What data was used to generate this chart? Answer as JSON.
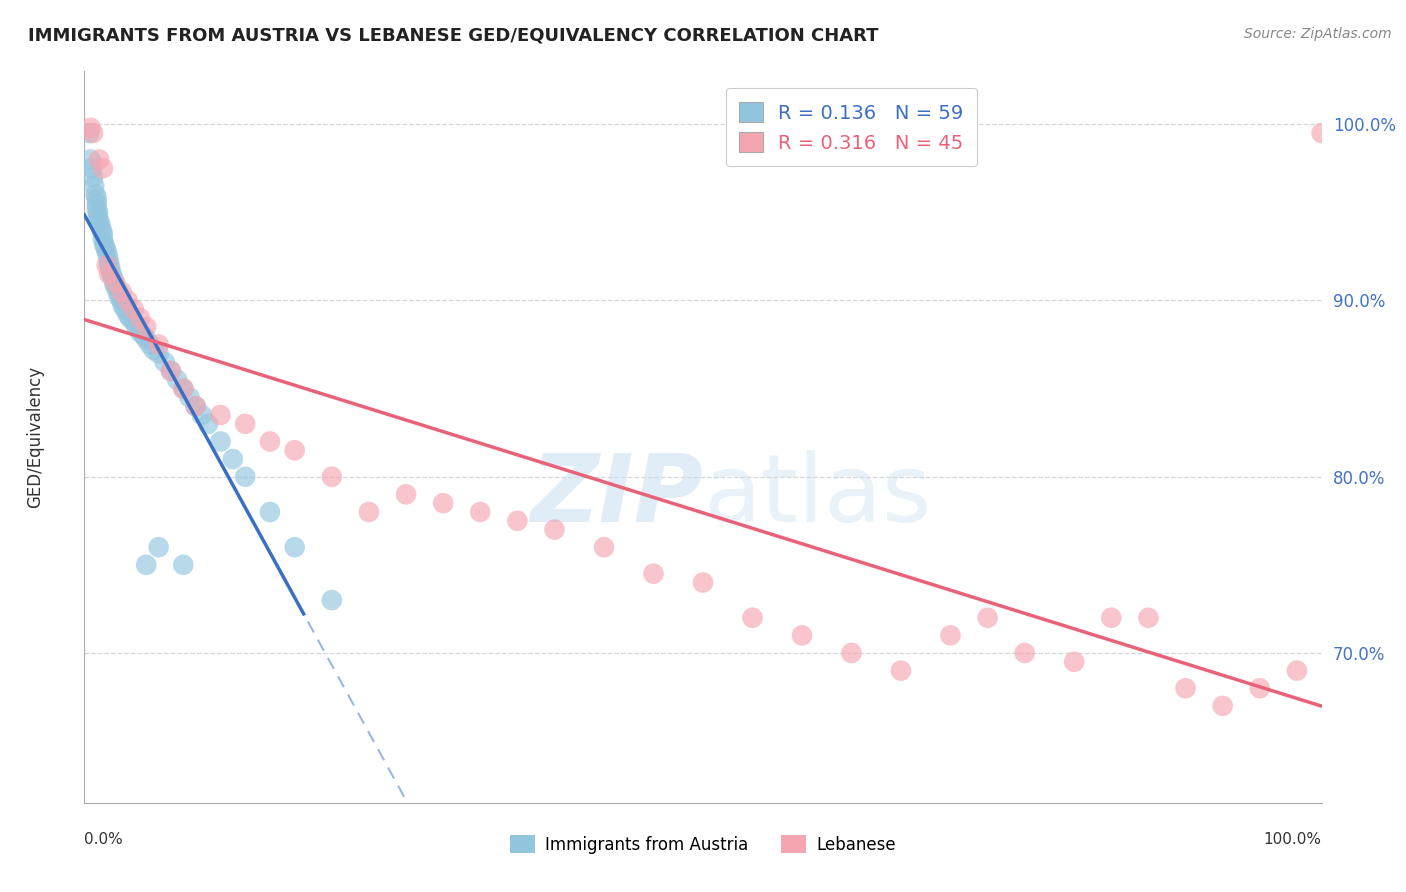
{
  "title": "IMMIGRANTS FROM AUSTRIA VS LEBANESE GED/EQUIVALENCY CORRELATION CHART",
  "source": "Source: ZipAtlas.com",
  "ylabel": "GED/Equivalency",
  "yticks": [
    0.7,
    0.8,
    0.9,
    1.0
  ],
  "ytick_labels": [
    "70.0%",
    "80.0%",
    "90.0%",
    "100.0%"
  ],
  "xlim": [
    0.0,
    1.0
  ],
  "ylim": [
    0.615,
    1.03
  ],
  "austria_R": 0.136,
  "austria_N": 59,
  "lebanese_R": 0.316,
  "lebanese_N": 45,
  "austria_color": "#92c5de",
  "lebanese_color": "#f4a6b0",
  "austria_trend_color": "#3a6fc4",
  "lebanese_trend_color": "#e8637a",
  "watermark_text": "ZIPatlas",
  "background_color": "#ffffff",
  "austria_x": [
    0.004,
    0.005,
    0.006,
    0.007,
    0.008,
    0.009,
    0.01,
    0.01,
    0.01,
    0.011,
    0.011,
    0.012,
    0.013,
    0.014,
    0.015,
    0.015,
    0.016,
    0.017,
    0.018,
    0.019,
    0.02,
    0.02,
    0.021,
    0.022,
    0.023,
    0.024,
    0.025,
    0.027,
    0.028,
    0.03,
    0.031,
    0.033,
    0.035,
    0.037,
    0.04,
    0.042,
    0.045,
    0.048,
    0.05,
    0.053,
    0.056,
    0.06,
    0.065,
    0.07,
    0.075,
    0.08,
    0.085,
    0.09,
    0.095,
    0.1,
    0.11,
    0.12,
    0.13,
    0.15,
    0.17,
    0.2,
    0.05,
    0.06,
    0.08
  ],
  "austria_y": [
    0.995,
    0.98,
    0.975,
    0.97,
    0.965,
    0.96,
    0.958,
    0.955,
    0.952,
    0.95,
    0.948,
    0.945,
    0.943,
    0.94,
    0.938,
    0.935,
    0.932,
    0.93,
    0.928,
    0.925,
    0.922,
    0.92,
    0.918,
    0.915,
    0.913,
    0.91,
    0.908,
    0.905,
    0.902,
    0.9,
    0.897,
    0.895,
    0.892,
    0.89,
    0.888,
    0.885,
    0.882,
    0.88,
    0.878,
    0.875,
    0.872,
    0.87,
    0.865,
    0.86,
    0.855,
    0.85,
    0.845,
    0.84,
    0.835,
    0.83,
    0.82,
    0.81,
    0.8,
    0.78,
    0.76,
    0.73,
    0.75,
    0.76,
    0.75
  ],
  "lebanese_x": [
    0.005,
    0.007,
    0.012,
    0.015,
    0.018,
    0.02,
    0.025,
    0.03,
    0.035,
    0.04,
    0.045,
    0.05,
    0.06,
    0.07,
    0.08,
    0.09,
    0.11,
    0.13,
    0.15,
    0.17,
    0.2,
    0.23,
    0.26,
    0.29,
    0.32,
    0.35,
    0.38,
    0.42,
    0.46,
    0.5,
    0.54,
    0.58,
    0.62,
    0.66,
    0.7,
    0.73,
    0.76,
    0.8,
    0.83,
    0.86,
    0.89,
    0.92,
    0.95,
    0.98,
    1.0
  ],
  "lebanese_y": [
    0.998,
    0.995,
    0.98,
    0.975,
    0.92,
    0.915,
    0.91,
    0.905,
    0.9,
    0.895,
    0.89,
    0.885,
    0.875,
    0.86,
    0.85,
    0.84,
    0.835,
    0.83,
    0.82,
    0.815,
    0.8,
    0.78,
    0.79,
    0.785,
    0.78,
    0.775,
    0.77,
    0.76,
    0.745,
    0.74,
    0.72,
    0.71,
    0.7,
    0.69,
    0.71,
    0.72,
    0.7,
    0.695,
    0.72,
    0.72,
    0.68,
    0.67,
    0.68,
    0.69,
    0.995
  ]
}
